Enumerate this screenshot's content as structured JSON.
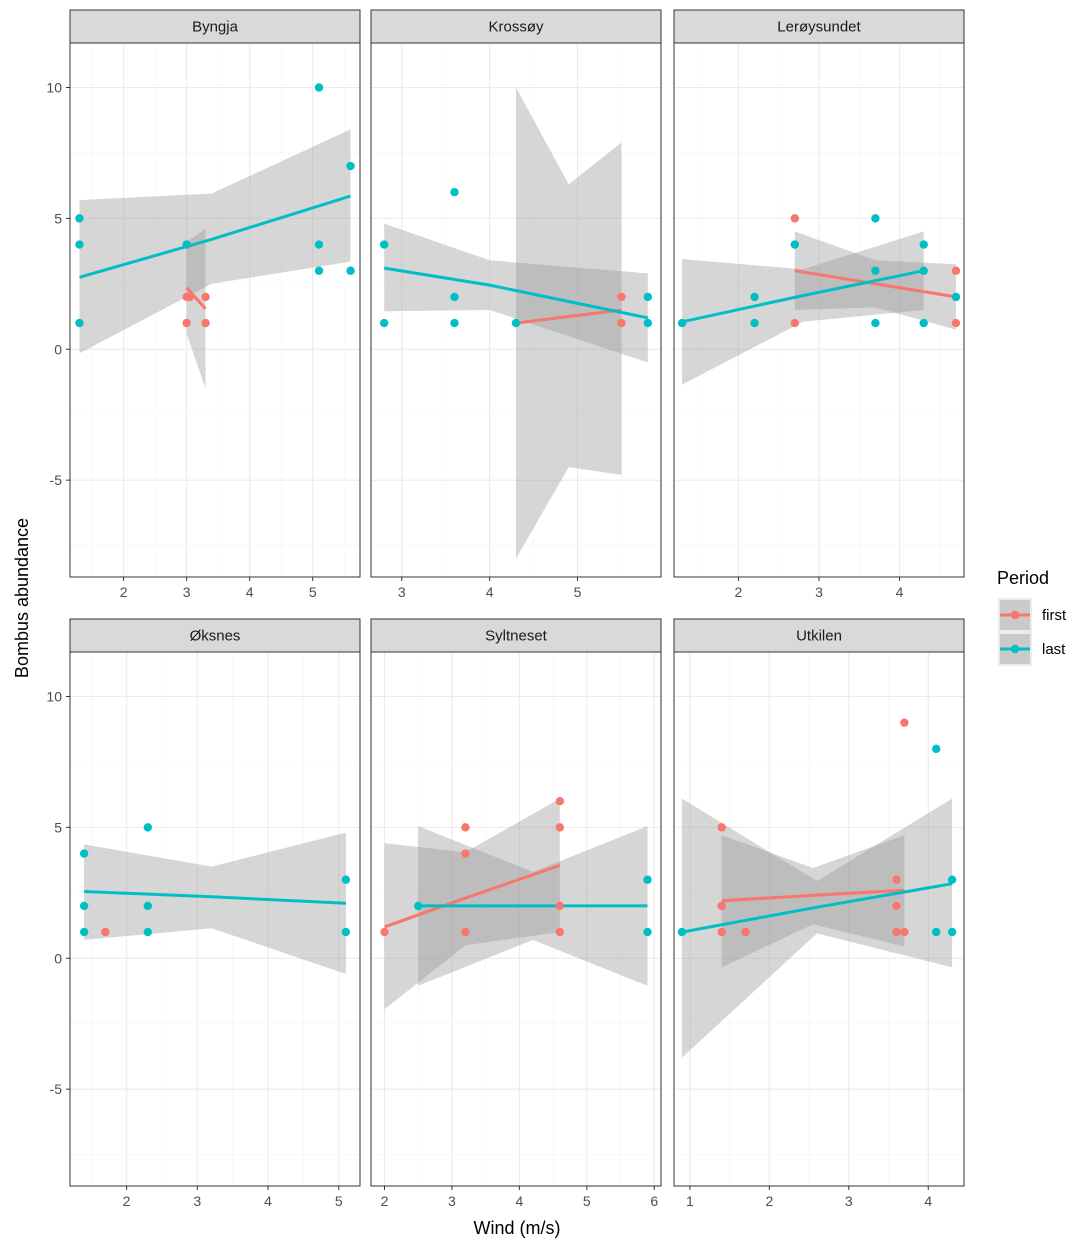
{
  "chart_data": {
    "type": "scatter",
    "xlabel": "Wind (m/s)",
    "ylabel": "Bombus abundance",
    "ylim": [
      -8.7,
      11.7
    ],
    "yticks": [
      -5,
      0,
      5,
      10
    ],
    "legend": {
      "title": "Period",
      "position": "right",
      "entries": [
        {
          "name": "first",
          "color": "#F8766D"
        },
        {
          "name": "last",
          "color": "#00BFC4"
        }
      ]
    },
    "colors": {
      "first": "#F8766D",
      "last": "#00BFC4",
      "ribbon": "#999999",
      "strip": "#d9d9d9",
      "grid_major": "#ebebeb",
      "grid_minor": "#f5f5f5"
    },
    "panels": [
      {
        "title": "Byngja",
        "xlim": [
          1.15,
          5.75
        ],
        "xticks": [
          2,
          3,
          4,
          5
        ],
        "points": {
          "first": [
            [
              3.0,
              1
            ],
            [
              3.0,
              2
            ],
            [
              3.05,
              2
            ],
            [
              3.3,
              2
            ],
            [
              3.3,
              1
            ],
            [
              3.0,
              4
            ]
          ],
          "last": [
            [
              1.3,
              5
            ],
            [
              1.3,
              4
            ],
            [
              1.3,
              1
            ],
            [
              3.0,
              4
            ],
            [
              5.1,
              10
            ],
            [
              5.1,
              4
            ],
            [
              5.1,
              3
            ],
            [
              5.6,
              7
            ],
            [
              5.6,
              3
            ]
          ]
        },
        "fits": {
          "first": {
            "x": [
              3.0,
              3.3
            ],
            "y": [
              2.35,
              1.55
            ],
            "lo": [
              0.6,
              -1.5
            ],
            "hi": [
              4.1,
              4.6
            ]
          },
          "last": {
            "x": [
              1.3,
              3.4,
              5.6
            ],
            "y": [
              2.75,
              4.2,
              5.85
            ],
            "lo": [
              -0.15,
              2.5,
              3.35
            ],
            "hi": [
              5.7,
              5.95,
              8.4
            ]
          }
        }
      },
      {
        "title": "Krossøy",
        "xlim": [
          2.65,
          5.95
        ],
        "xticks": [
          3,
          4,
          5
        ],
        "points": {
          "first": [
            [
              4.3,
              1
            ],
            [
              5.5,
              2
            ],
            [
              5.5,
              1
            ]
          ],
          "last": [
            [
              2.8,
              4
            ],
            [
              2.8,
              1
            ],
            [
              3.6,
              6
            ],
            [
              3.6,
              2
            ],
            [
              3.6,
              1
            ],
            [
              4.3,
              1
            ],
            [
              5.8,
              2
            ],
            [
              5.8,
              1
            ]
          ]
        },
        "fits": {
          "first": {
            "x": [
              4.3,
              4.9,
              5.5
            ],
            "y": [
              1.0,
              1.25,
              1.5
            ],
            "lo": [
              -8.0,
              -4.5,
              -4.8
            ],
            "hi": [
              10.0,
              6.3,
              7.9
            ]
          },
          "last": {
            "x": [
              2.8,
              4.0,
              5.8
            ],
            "y": [
              3.1,
              2.45,
              1.2
            ],
            "lo": [
              1.45,
              1.5,
              -0.5
            ],
            "hi": [
              4.8,
              3.4,
              2.9
            ]
          }
        }
      },
      {
        "title": "Lerøysundet",
        "xlim": [
          1.2,
          4.8
        ],
        "xticks": [
          2,
          3,
          4
        ],
        "points": {
          "first": [
            [
              2.7,
              5
            ],
            [
              2.7,
              4
            ],
            [
              2.7,
              1
            ],
            [
              4.7,
              3
            ],
            [
              4.7,
              2
            ],
            [
              4.7,
              1
            ]
          ],
          "last": [
            [
              1.3,
              1
            ],
            [
              2.2,
              2
            ],
            [
              2.2,
              1
            ],
            [
              2.7,
              4
            ],
            [
              3.7,
              5
            ],
            [
              3.7,
              3
            ],
            [
              3.7,
              1
            ],
            [
              4.3,
              4
            ],
            [
              4.3,
              3
            ],
            [
              4.3,
              1
            ],
            [
              4.7,
              2
            ]
          ]
        },
        "fits": {
          "first": {
            "x": [
              2.7,
              3.7,
              4.7
            ],
            "y": [
              3.0,
              2.5,
              2.0
            ],
            "lo": [
              1.5,
              1.6,
              0.75
            ],
            "hi": [
              4.5,
              3.4,
              3.25
            ]
          },
          "last": {
            "x": [
              1.3,
              2.8,
              4.3
            ],
            "y": [
              1.05,
              2.05,
              3.0
            ],
            "lo": [
              -1.35,
              1.05,
              1.5
            ],
            "hi": [
              3.45,
              3.05,
              4.5
            ]
          }
        }
      },
      {
        "title": "Øksnes",
        "xlim": [
          1.2,
          5.3
        ],
        "xticks": [
          2,
          3,
          4,
          5
        ],
        "points": {
          "first": [
            [
              1.7,
              1
            ]
          ],
          "last": [
            [
              1.4,
              4
            ],
            [
              1.4,
              2
            ],
            [
              1.4,
              1
            ],
            [
              2.3,
              5
            ],
            [
              2.3,
              2
            ],
            [
              2.3,
              1
            ],
            [
              5.1,
              3
            ],
            [
              5.1,
              1
            ]
          ]
        },
        "fits": {
          "last": {
            "x": [
              1.4,
              3.2,
              5.1
            ],
            "y": [
              2.55,
              2.35,
              2.1
            ],
            "lo": [
              0.7,
              1.15,
              -0.6
            ],
            "hi": [
              4.35,
              3.5,
              4.8
            ]
          }
        }
      },
      {
        "title": "Syltneset",
        "xlim": [
          1.8,
          6.1
        ],
        "xticks": [
          2,
          3,
          4,
          5,
          6
        ],
        "points": {
          "first": [
            [
              2.0,
              1
            ],
            [
              3.2,
              5
            ],
            [
              3.2,
              4
            ],
            [
              3.2,
              1
            ],
            [
              4.6,
              6
            ],
            [
              4.6,
              5
            ],
            [
              4.6,
              2
            ],
            [
              4.6,
              1
            ]
          ],
          "last": [
            [
              2.5,
              2
            ],
            [
              5.9,
              3
            ],
            [
              5.9,
              1
            ]
          ]
        },
        "fits": {
          "first": {
            "x": [
              2.0,
              3.2,
              4.6
            ],
            "y": [
              1.2,
              2.3,
              3.55
            ],
            "lo": [
              -1.95,
              0.5,
              1.0
            ],
            "hi": [
              4.4,
              4.05,
              6.1
            ]
          },
          "last": {
            "x": [
              2.5,
              4.2,
              5.9
            ],
            "y": [
              2.0,
              2.0,
              2.0
            ],
            "lo": [
              -1.05,
              0.7,
              -1.05
            ],
            "hi": [
              5.05,
              3.3,
              5.05
            ]
          }
        }
      },
      {
        "title": "Utkilen",
        "xlim": [
          0.8,
          4.45
        ],
        "xticks": [
          1,
          2,
          3,
          4
        ],
        "points": {
          "first": [
            [
              1.4,
              5
            ],
            [
              1.4,
              2
            ],
            [
              1.4,
              1
            ],
            [
              1.7,
              1
            ],
            [
              3.6,
              3
            ],
            [
              3.6,
              2
            ],
            [
              3.6,
              1
            ],
            [
              3.7,
              9
            ],
            [
              3.7,
              1
            ]
          ],
          "last": [
            [
              0.9,
              1
            ],
            [
              4.1,
              8
            ],
            [
              4.1,
              1
            ],
            [
              4.3,
              3
            ],
            [
              4.3,
              1
            ]
          ]
        },
        "fits": {
          "first": {
            "x": [
              1.4,
              2.55,
              3.7
            ],
            "y": [
              2.2,
              2.4,
              2.6
            ],
            "lo": [
              -0.35,
              1.3,
              0.45
            ],
            "hi": [
              4.7,
              3.45,
              4.7
            ]
          },
          "last": {
            "x": [
              0.9,
              2.6,
              4.3
            ],
            "y": [
              1.0,
              1.95,
              2.85
            ],
            "lo": [
              -3.8,
              0.95,
              -0.35
            ],
            "hi": [
              6.1,
              2.95,
              6.1
            ]
          }
        }
      }
    ]
  }
}
